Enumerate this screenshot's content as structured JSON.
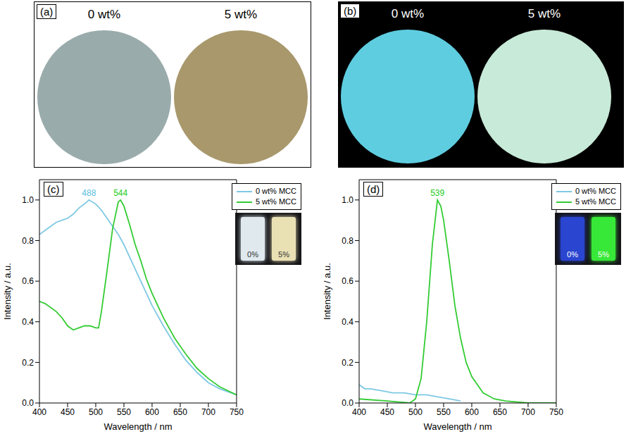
{
  "photos": [
    {
      "panel_label": "(a)",
      "items": [
        "0 wt%",
        "5 wt%"
      ]
    },
    {
      "panel_label": "(b)",
      "items": [
        "0 wt%",
        "5 wt%"
      ]
    }
  ],
  "chart_data": [
    {
      "type": "line",
      "panel_label": "(c)",
      "xlabel": "Wavelength / nm",
      "ylabel": "Intensity / a.u.",
      "xlim": [
        400,
        750
      ],
      "xticks": [
        400,
        450,
        500,
        550,
        600,
        650,
        700,
        750
      ],
      "ylim": [
        0,
        1.1
      ],
      "yticks": [
        {
          "value": 0,
          "label": "0.0"
        },
        {
          "value": 0.2,
          "label": "0.2"
        },
        {
          "value": 0.4,
          "label": "0.4"
        },
        {
          "value": 0.6,
          "label": "0.6"
        },
        {
          "value": 0.8,
          "label": "0.8"
        },
        {
          "value": 1,
          "label": "1.0"
        }
      ],
      "grid": false,
      "legend": "upper right",
      "annotations": [
        {
          "x": 488,
          "y": 1,
          "label": "488",
          "color": "#5bbde0"
        },
        {
          "x": 544,
          "y": 1,
          "label": "544",
          "color": "#22cc22"
        }
      ],
      "inset_labels": [
        "0%",
        "5%"
      ],
      "series": [
        {
          "name": "0 wt% MCC",
          "color": "#7ec8e3",
          "x": [
            400,
            410,
            420,
            430,
            440,
            450,
            460,
            470,
            480,
            488,
            500,
            510,
            520,
            530,
            540,
            550,
            560,
            570,
            580,
            590,
            600,
            620,
            640,
            660,
            680,
            700,
            720,
            750
          ],
          "values": [
            0.83,
            0.85,
            0.87,
            0.89,
            0.9,
            0.91,
            0.93,
            0.96,
            0.98,
            1.0,
            0.98,
            0.95,
            0.91,
            0.87,
            0.83,
            0.78,
            0.72,
            0.66,
            0.6,
            0.54,
            0.48,
            0.38,
            0.29,
            0.21,
            0.15,
            0.1,
            0.07,
            0.04
          ]
        },
        {
          "name": "5 wt% MCC",
          "color": "#33cc33",
          "x": [
            400,
            410,
            420,
            430,
            440,
            450,
            460,
            470,
            480,
            490,
            500,
            505,
            510,
            520,
            530,
            540,
            544,
            550,
            560,
            570,
            580,
            590,
            600,
            620,
            640,
            660,
            680,
            700,
            720,
            750
          ],
          "values": [
            0.5,
            0.49,
            0.47,
            0.45,
            0.42,
            0.38,
            0.36,
            0.37,
            0.38,
            0.38,
            0.37,
            0.37,
            0.45,
            0.65,
            0.86,
            0.99,
            1.0,
            0.97,
            0.88,
            0.78,
            0.7,
            0.61,
            0.54,
            0.42,
            0.32,
            0.24,
            0.17,
            0.12,
            0.08,
            0.04
          ]
        }
      ]
    },
    {
      "type": "line",
      "panel_label": "(d)",
      "xlabel": "Wavelength / nm",
      "ylabel": "Intensity / a.u.",
      "xlim": [
        400,
        750
      ],
      "xticks": [
        400,
        450,
        500,
        550,
        600,
        650,
        700,
        750
      ],
      "ylim": [
        0,
        1.1
      ],
      "yticks": [
        {
          "value": 0,
          "label": "0.0"
        },
        {
          "value": 0.2,
          "label": "0.2"
        },
        {
          "value": 0.4,
          "label": "0.4"
        },
        {
          "value": 0.6,
          "label": "0.6"
        },
        {
          "value": 0.8,
          "label": "0.8"
        },
        {
          "value": 1,
          "label": "1.0"
        }
      ],
      "grid": false,
      "legend": "upper right",
      "annotations": [
        {
          "x": 539,
          "y": 1,
          "label": "539",
          "color": "#22cc22"
        }
      ],
      "inset_labels": [
        "0%",
        "5%"
      ],
      "series": [
        {
          "name": "0 wt% MCC",
          "color": "#7ec8e3",
          "x": [
            400,
            410,
            420,
            440,
            460,
            480,
            500,
            520,
            540,
            560,
            580
          ],
          "values": [
            0.09,
            0.07,
            0.07,
            0.06,
            0.05,
            0.05,
            0.04,
            0.04,
            0.03,
            0.02,
            0.01
          ]
        },
        {
          "name": "5 wt% MCC",
          "color": "#33cc33",
          "x": [
            400,
            450,
            490,
            500,
            510,
            520,
            530,
            539,
            545,
            550,
            560,
            570,
            580,
            590,
            600,
            620,
            640,
            660,
            700,
            750
          ],
          "values": [
            0.02,
            0.01,
            0.0,
            0.02,
            0.12,
            0.4,
            0.78,
            1.0,
            0.97,
            0.9,
            0.7,
            0.48,
            0.32,
            0.2,
            0.13,
            0.05,
            0.02,
            0.01,
            0.0,
            0.0
          ]
        }
      ]
    }
  ]
}
